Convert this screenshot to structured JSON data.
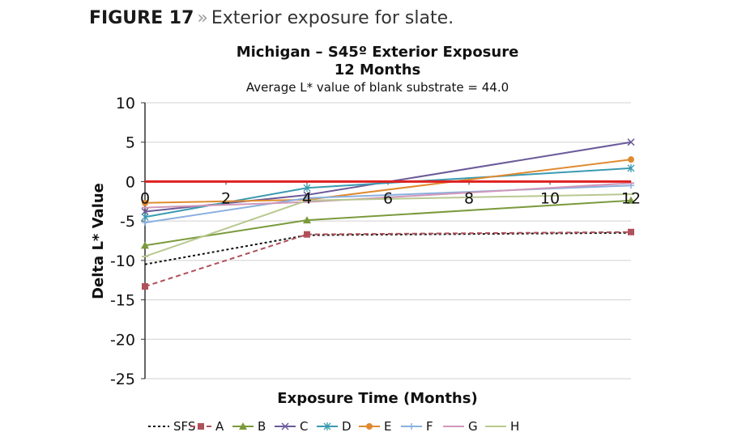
{
  "figure": {
    "label": "FIGURE 17",
    "separator": "»",
    "caption": "Exterior exposure for slate."
  },
  "chart_data": {
    "type": "line",
    "title": "Michigan – S45º Exterior Exposure",
    "title_line2": "12 Months",
    "subtitle": "Average L* value of blank substrate = 44.0",
    "xlabel": "Exposure Time (Months)",
    "ylabel": "Delta L* Value",
    "xlim": [
      0,
      12
    ],
    "ylim": [
      -25,
      10
    ],
    "xticks": [
      0,
      2,
      4,
      6,
      8,
      10,
      12
    ],
    "yticks": [
      10,
      5,
      0,
      -5,
      -10,
      -15,
      -20,
      -25
    ],
    "grid": true,
    "reference_line": {
      "y": 0,
      "color": "#e02020"
    },
    "legend_position": "bottom",
    "series": [
      {
        "name": "SFS",
        "color": "#111111",
        "dash": "3,3",
        "marker": "none",
        "x": [
          0,
          4,
          12
        ],
        "y": [
          -10.5,
          -6.8,
          -6.5
        ]
      },
      {
        "name": "A",
        "color": "#b0505a",
        "dash": "6,4",
        "marker": "square",
        "x": [
          0,
          4,
          12
        ],
        "y": [
          -13.3,
          -6.7,
          -6.4
        ]
      },
      {
        "name": "B",
        "color": "#7a9a3c",
        "dash": "",
        "marker": "triangle",
        "x": [
          0,
          4,
          12
        ],
        "y": [
          -8.1,
          -4.9,
          -2.4
        ]
      },
      {
        "name": "C",
        "color": "#6b5a9a",
        "dash": "",
        "marker": "x",
        "x": [
          0,
          4,
          12
        ],
        "y": [
          -3.8,
          -1.7,
          5.0
        ]
      },
      {
        "name": "D",
        "color": "#3a9ab0",
        "dash": "",
        "marker": "star",
        "x": [
          0,
          4,
          12
        ],
        "y": [
          -4.5,
          -0.8,
          1.7
        ]
      },
      {
        "name": "E",
        "color": "#e08a30",
        "dash": "",
        "marker": "circle",
        "x": [
          0,
          4,
          12
        ],
        "y": [
          -2.7,
          -2.3,
          2.8
        ]
      },
      {
        "name": "F",
        "color": "#8ab0e0",
        "dash": "",
        "marker": "plus",
        "x": [
          0,
          4,
          12
        ],
        "y": [
          -5.2,
          -2.1,
          -0.5
        ]
      },
      {
        "name": "G",
        "color": "#d098b8",
        "dash": "",
        "marker": "dash",
        "x": [
          0,
          4,
          12
        ],
        "y": [
          -3.3,
          -2.6,
          -0.2
        ]
      },
      {
        "name": "H",
        "color": "#b8c890",
        "dash": "",
        "marker": "dash",
        "x": [
          0,
          4,
          12
        ],
        "y": [
          -9.5,
          -2.4,
          -1.6
        ]
      }
    ]
  }
}
